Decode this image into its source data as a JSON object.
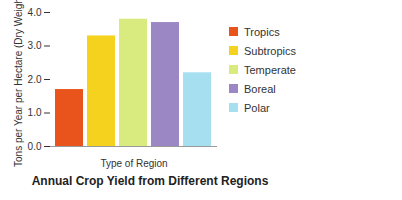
{
  "chart_data": {
    "type": "bar",
    "title": "Annual Crop Yield from Different Regions",
    "x_label": "Type of Region",
    "y_label": "Tons per Year per Hectare (Dry Weight)",
    "categories": [
      "Tropics",
      "Subtropics",
      "Temperate",
      "Boreal",
      "Polar"
    ],
    "values": [
      1.7,
      3.3,
      3.8,
      3.7,
      2.2
    ],
    "colors": [
      "#e8541c",
      "#f5d21d",
      "#d9ea7e",
      "#9b87c4",
      "#a6dff0"
    ],
    "ylim": [
      0,
      4
    ],
    "yticks": [
      0,
      1,
      2,
      3,
      4
    ],
    "grid": false,
    "legend": "right",
    "tick_labels": "y"
  }
}
